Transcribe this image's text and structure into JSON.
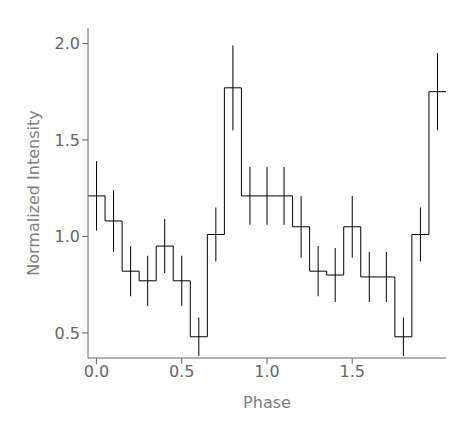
{
  "chart_data": {
    "type": "histogram",
    "xlabel": "Phase",
    "ylabel": "Normalized Intensity",
    "xlim": [
      -0.05,
      2.05
    ],
    "ylim": [
      0.37,
      2.08
    ],
    "xticks": [
      {
        "value": 0,
        "label": "0.0"
      },
      0.5,
      {
        "value": 1,
        "label": "1.0"
      },
      1.5
    ],
    "yticks": [
      0.5,
      {
        "value": 1,
        "label": "1.0"
      },
      1.5,
      {
        "value": 2,
        "label": "2.0"
      }
    ],
    "color": "#000000",
    "bins": [
      -0.05,
      0.05,
      0.15,
      0.25,
      0.35,
      0.45,
      0.55,
      0.65,
      0.75,
      0.85,
      0.95,
      1.05,
      1.15,
      1.25,
      1.35,
      1.45,
      1.55,
      1.65,
      1.75,
      1.85,
      1.95,
      2.05
    ],
    "values": [
      1.21,
      1.08,
      0.82,
      0.77,
      0.95,
      0.77,
      0.48,
      1.01,
      1.77,
      1.21,
      1.21,
      1.21,
      1.05,
      0.82,
      0.8,
      1.05,
      0.79,
      0.79,
      0.48,
      1.01,
      1.75
    ],
    "error_x": [
      0.0,
      0.1,
      0.2,
      0.3,
      0.4,
      0.5,
      0.6,
      0.7,
      0.8,
      0.9,
      1.0,
      1.1,
      1.2,
      1.3,
      1.4,
      1.5,
      1.6,
      1.7,
      1.8,
      1.9,
      2.0
    ],
    "error_plus": [
      0.18,
      0.16,
      0.13,
      0.13,
      0.14,
      0.13,
      0.1,
      0.14,
      0.22,
      0.15,
      0.15,
      0.15,
      0.16,
      0.13,
      0.14,
      0.16,
      0.13,
      0.13,
      0.1,
      0.14,
      0.2
    ],
    "error_minus": [
      0.18,
      0.16,
      0.13,
      0.13,
      0.14,
      0.13,
      0.1,
      0.14,
      0.22,
      0.15,
      0.15,
      0.15,
      0.16,
      0.13,
      0.14,
      0.16,
      0.13,
      0.13,
      0.1,
      0.14,
      0.2
    ]
  }
}
